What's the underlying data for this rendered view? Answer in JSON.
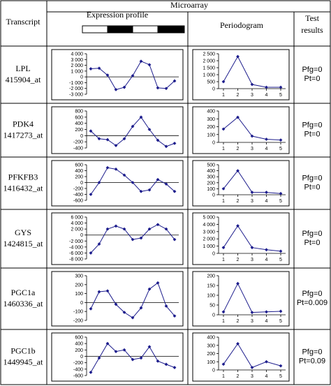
{
  "header": {
    "transcript": "Transcript",
    "microarray": "Microarray",
    "expression_profile": "Expression profile",
    "periodogram": "Periodogram",
    "test_results": [
      "Test",
      "results"
    ]
  },
  "rows": [
    {
      "gene": "LPL",
      "probe": "415904_at",
      "tests": [
        "Pfg=0",
        "Pt=0"
      ],
      "chart_data": [
        {
          "type": "line",
          "yticks": [
            4000,
            3000,
            2000,
            1000,
            0,
            -1000,
            -2000,
            -3000
          ],
          "ylim": [
            -3000,
            4000
          ],
          "values": [
            1400,
            1500,
            300,
            -2200,
            -1800,
            200,
            2700,
            2100,
            -1900,
            -2000,
            -700
          ]
        },
        {
          "type": "line",
          "yticks": [
            2500,
            2000,
            1500,
            1000,
            500,
            0
          ],
          "ylim": [
            0,
            2500
          ],
          "x": [
            1,
            2,
            3,
            4,
            5
          ],
          "xticks": [
            "1",
            "2",
            "3",
            "4",
            "5"
          ],
          "values": [
            500,
            2300,
            300,
            100,
            100
          ]
        }
      ]
    },
    {
      "gene": "PDK4",
      "probe": "1417273_at",
      "tests": [
        "Pfg=0",
        "Pt=0"
      ],
      "chart_data": [
        {
          "type": "line",
          "yticks": [
            800,
            600,
            400,
            200,
            0,
            -200,
            -400
          ],
          "ylim": [
            -400,
            800
          ],
          "values": [
            150,
            -100,
            -130,
            -320,
            -100,
            300,
            600,
            200,
            -150,
            -350,
            -250
          ]
        },
        {
          "type": "line",
          "yticks": [
            400,
            300,
            200,
            100,
            0
          ],
          "ylim": [
            0,
            400
          ],
          "x": [
            1,
            2,
            3,
            4,
            5
          ],
          "xticks": [
            "1",
            "2",
            "3",
            "4",
            "5"
          ],
          "values": [
            170,
            320,
            80,
            40,
            30
          ]
        }
      ]
    },
    {
      "gene": "PFKFB3",
      "probe": "1416432_at",
      "tests": [
        "Pfg=0",
        "Pt=0"
      ],
      "chart_data": [
        {
          "type": "line",
          "yticks": [
            600,
            400,
            200,
            0,
            -200,
            -400,
            -600
          ],
          "ylim": [
            -600,
            600
          ],
          "values": [
            -400,
            0,
            500,
            450,
            250,
            0,
            -300,
            -250,
            100,
            -50,
            -300
          ]
        },
        {
          "type": "line",
          "yticks": [
            500,
            400,
            300,
            200,
            100,
            0
          ],
          "ylim": [
            0,
            500
          ],
          "x": [
            1,
            2,
            3,
            4,
            5
          ],
          "xticks": [
            "1",
            "2",
            "3",
            "4",
            "5"
          ],
          "values": [
            100,
            400,
            40,
            40,
            20
          ]
        }
      ]
    },
    {
      "gene": "GYS",
      "probe": "1424815_at",
      "tests": [
        "Pfg=0",
        "Pt=0"
      ],
      "chart_data": [
        {
          "type": "line",
          "yticks": [
            6000,
            4000,
            2000,
            0,
            -2000,
            -4000,
            -6000,
            -8000
          ],
          "ylim": [
            -8000,
            6000
          ],
          "values": [
            -6000,
            -3000,
            2000,
            3000,
            2000,
            -1500,
            -1000,
            2000,
            3500,
            2000,
            -1500
          ]
        },
        {
          "type": "line",
          "yticks": [
            5000,
            4000,
            3000,
            2000,
            1000,
            0
          ],
          "ylim": [
            0,
            5000
          ],
          "x": [
            1,
            2,
            3,
            4,
            5
          ],
          "xticks": [
            "1",
            "2",
            "3",
            "4",
            "5"
          ],
          "values": [
            800,
            3800,
            800,
            500,
            300
          ]
        }
      ]
    },
    {
      "gene": "PGC1a",
      "probe": "1460336_at",
      "tests": [
        "Pfg=0",
        "Pt=0.009"
      ],
      "chart_data": [
        {
          "type": "line",
          "yticks": [
            300,
            200,
            100,
            0,
            -100,
            -200
          ],
          "ylim": [
            -200,
            300
          ],
          "values": [
            -70,
            120,
            130,
            -20,
            -110,
            -170,
            -60,
            150,
            220,
            -40,
            -150
          ]
        },
        {
          "type": "line",
          "yticks": [
            200,
            150,
            100,
            50,
            0
          ],
          "ylim": [
            0,
            200
          ],
          "x": [
            1,
            2,
            3,
            4,
            5
          ],
          "xticks": [
            "1",
            "2",
            "3",
            "4",
            "5"
          ],
          "values": [
            15,
            160,
            12,
            15,
            18
          ]
        }
      ]
    },
    {
      "gene": "PGC1b",
      "probe": "1449945_at",
      "tests": [
        "Pfg=0",
        "Pt=0.09"
      ],
      "chart_data": [
        {
          "type": "line",
          "yticks": [
            600,
            400,
            200,
            0,
            -200,
            -400,
            -600
          ],
          "ylim": [
            -600,
            600
          ],
          "values": [
            -500,
            -50,
            400,
            150,
            200,
            -100,
            -50,
            300,
            -150,
            -250,
            -350
          ]
        },
        {
          "type": "line",
          "yticks": [
            400,
            300,
            200,
            100,
            0
          ],
          "ylim": [
            0,
            400
          ],
          "x": [
            1,
            2,
            3,
            4,
            5
          ],
          "xticks": [
            "1",
            "2",
            "3",
            "4",
            "5"
          ],
          "values": [
            70,
            320,
            30,
            100,
            50
          ]
        }
      ]
    }
  ]
}
